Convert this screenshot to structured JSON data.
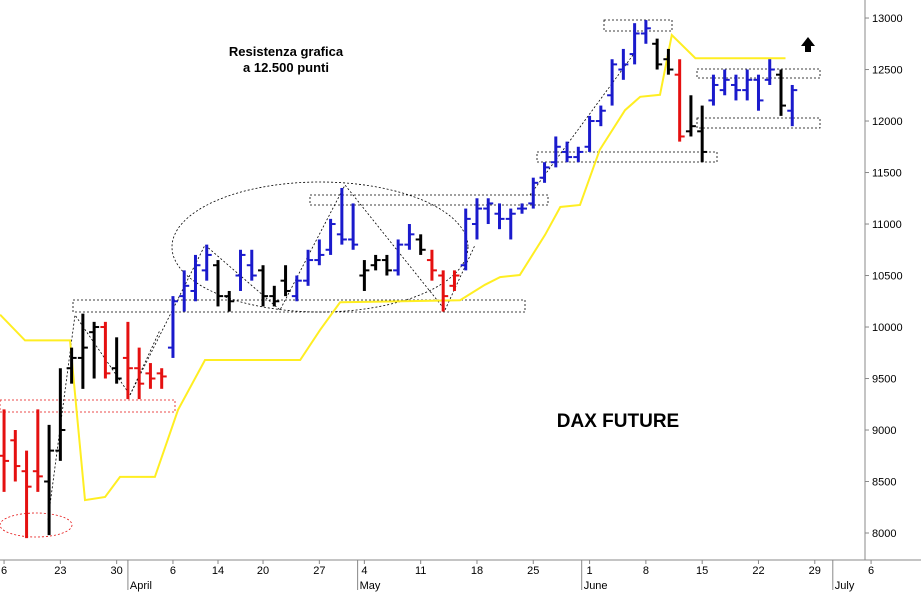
{
  "chart_data": {
    "type": "ohlc",
    "title": "DAX FUTURE",
    "annotation": [
      "Resistenza grafica",
      "a 12.500 punti"
    ],
    "xlim": [
      -0.36,
      76.46
    ],
    "ylim": [
      7738,
      13175
    ],
    "yticks": [
      8000,
      8500,
      9000,
      9500,
      10000,
      10500,
      11000,
      11500,
      12000,
      12500,
      13000
    ],
    "xticks": [
      {
        "value": 0,
        "label": "6"
      },
      {
        "value": 5,
        "label": "23"
      },
      {
        "value": 10,
        "label": "30"
      },
      {
        "value": 15,
        "label": "6"
      },
      {
        "value": 19,
        "label": "14"
      },
      {
        "value": 23,
        "label": "20"
      },
      {
        "value": 28,
        "label": "27"
      },
      {
        "value": 32,
        "label": "4"
      },
      {
        "value": 37,
        "label": "11"
      },
      {
        "value": 42,
        "label": "18"
      },
      {
        "value": 47,
        "label": "25"
      },
      {
        "value": 52,
        "label": "1"
      },
      {
        "value": 57,
        "label": "8"
      },
      {
        "value": 62,
        "label": "15"
      },
      {
        "value": 67,
        "label": "22"
      },
      {
        "value": 72,
        "label": "29"
      },
      {
        "value": 77,
        "label": "6"
      }
    ],
    "months": [
      {
        "value": 11,
        "label": "April"
      },
      {
        "value": 31.4,
        "label": "May"
      },
      {
        "value": 51.3,
        "label": "June"
      },
      {
        "value": 73.6,
        "label": "July"
      }
    ],
    "bars": [
      {
        "x": 0,
        "open": 8750,
        "high": 9200,
        "low": 8400,
        "close": 8700,
        "color": "#e51010"
      },
      {
        "x": 1,
        "open": 8900,
        "high": 9000,
        "low": 8500,
        "close": 8650,
        "color": "#e51010"
      },
      {
        "x": 2,
        "open": 8600,
        "high": 8800,
        "low": 7950,
        "close": 8450,
        "color": "#e51010"
      },
      {
        "x": 3,
        "open": 8600,
        "high": 9200,
        "low": 8400,
        "close": 8550,
        "color": "#e51010"
      },
      {
        "x": 4,
        "open": 8500,
        "high": 9050,
        "low": 7980,
        "close": 8800,
        "color": "#000000"
      },
      {
        "x": 5,
        "open": 8800,
        "high": 9600,
        "low": 8700,
        "close": 9000,
        "color": "#000000"
      },
      {
        "x": 6,
        "open": 9600,
        "high": 9800,
        "low": 9450,
        "close": 9700,
        "color": "#000000"
      },
      {
        "x": 7,
        "open": 9700,
        "high": 10130,
        "low": 9400,
        "close": 9800,
        "color": "#000000"
      },
      {
        "x": 8,
        "open": 9950,
        "high": 10050,
        "low": 9500,
        "close": 10000,
        "color": "#000000"
      },
      {
        "x": 9,
        "open": 10000,
        "high": 10050,
        "low": 9500,
        "close": 9550,
        "color": "#e51010"
      },
      {
        "x": 10,
        "open": 9600,
        "high": 9900,
        "low": 9450,
        "close": 9500,
        "color": "#000000"
      },
      {
        "x": 11,
        "open": 9700,
        "high": 10050,
        "low": 9300,
        "close": 9600,
        "color": "#e51010"
      },
      {
        "x": 12,
        "open": 9600,
        "high": 9800,
        "low": 9300,
        "close": 9450,
        "color": "#e51010"
      },
      {
        "x": 13,
        "open": 9550,
        "high": 9650,
        "low": 9400,
        "close": 9500,
        "color": "#e51010"
      },
      {
        "x": 14,
        "open": 9550,
        "high": 9600,
        "low": 9400,
        "close": 9520,
        "color": "#e51010"
      },
      {
        "x": 15,
        "open": 9800,
        "high": 10300,
        "low": 9700,
        "close": 10250,
        "color": "#1a1acc"
      },
      {
        "x": 16,
        "open": 10300,
        "high": 10550,
        "low": 10150,
        "close": 10400,
        "color": "#1a1acc"
      },
      {
        "x": 17,
        "open": 10350,
        "high": 10700,
        "low": 10250,
        "close": 10600,
        "color": "#1a1acc"
      },
      {
        "x": 18,
        "open": 10550,
        "high": 10800,
        "low": 10450,
        "close": 10700,
        "color": "#1a1acc"
      },
      {
        "x": 19,
        "open": 10600,
        "high": 10650,
        "low": 10200,
        "close": 10300,
        "color": "#000000"
      },
      {
        "x": 20,
        "open": 10300,
        "high": 10350,
        "low": 10150,
        "close": 10250,
        "color": "#000000"
      },
      {
        "x": 21,
        "open": 10500,
        "high": 10750,
        "low": 10350,
        "close": 10700,
        "color": "#1a1acc"
      },
      {
        "x": 22,
        "open": 10600,
        "high": 10750,
        "low": 10450,
        "close": 10500,
        "color": "#1a1acc"
      },
      {
        "x": 23,
        "open": 10550,
        "high": 10600,
        "low": 10200,
        "close": 10300,
        "color": "#000000"
      },
      {
        "x": 24,
        "open": 10300,
        "high": 10400,
        "low": 10200,
        "close": 10250,
        "color": "#000000"
      },
      {
        "x": 25,
        "open": 10450,
        "high": 10600,
        "low": 10300,
        "close": 10350,
        "color": "#000000"
      },
      {
        "x": 26,
        "open": 10300,
        "high": 10500,
        "low": 10250,
        "close": 10450,
        "color": "#1a1acc"
      },
      {
        "x": 27,
        "open": 10450,
        "high": 10750,
        "low": 10400,
        "close": 10650,
        "color": "#1a1acc"
      },
      {
        "x": 28,
        "open": 10650,
        "high": 10850,
        "low": 10600,
        "close": 10700,
        "color": "#1a1acc"
      },
      {
        "x": 29,
        "open": 10750,
        "high": 11050,
        "low": 10700,
        "close": 11000,
        "color": "#1a1acc"
      },
      {
        "x": 30,
        "open": 10900,
        "high": 11350,
        "low": 10800,
        "close": 10850,
        "color": "#1a1acc"
      },
      {
        "x": 31,
        "open": 10850,
        "high": 11200,
        "low": 10750,
        "close": 10800,
        "color": "#1a1acc"
      },
      {
        "x": 32,
        "open": 10500,
        "high": 10650,
        "low": 10350,
        "close": 10550,
        "color": "#000000"
      },
      {
        "x": 33,
        "open": 10600,
        "high": 10700,
        "low": 10550,
        "close": 10650,
        "color": "#000000"
      },
      {
        "x": 34,
        "open": 10650,
        "high": 10700,
        "low": 10500,
        "close": 10550,
        "color": "#000000"
      },
      {
        "x": 35,
        "open": 10550,
        "high": 10850,
        "low": 10500,
        "close": 10800,
        "color": "#1a1acc"
      },
      {
        "x": 36,
        "open": 10800,
        "high": 11000,
        "low": 10750,
        "close": 10900,
        "color": "#1a1acc"
      },
      {
        "x": 37,
        "open": 10850,
        "high": 10900,
        "low": 10700,
        "close": 10750,
        "color": "#000000"
      },
      {
        "x": 38,
        "open": 10650,
        "high": 10750,
        "low": 10450,
        "close": 10550,
        "color": "#e51010"
      },
      {
        "x": 39,
        "open": 10500,
        "high": 10550,
        "low": 10150,
        "close": 10300,
        "color": "#e51010"
      },
      {
        "x": 40,
        "open": 10400,
        "high": 10550,
        "low": 10350,
        "close": 10500,
        "color": "#e51010"
      },
      {
        "x": 41,
        "open": 10600,
        "high": 11150,
        "low": 10550,
        "close": 11050,
        "color": "#1a1acc"
      },
      {
        "x": 42,
        "open": 11000,
        "high": 11250,
        "low": 10850,
        "close": 11150,
        "color": "#1a1acc"
      },
      {
        "x": 43,
        "open": 11150,
        "high": 11250,
        "low": 11000,
        "close": 11200,
        "color": "#1a1acc"
      },
      {
        "x": 44,
        "open": 11100,
        "high": 11200,
        "low": 10950,
        "close": 11050,
        "color": "#1a1acc"
      },
      {
        "x": 45,
        "open": 11050,
        "high": 11150,
        "low": 10850,
        "close": 11100,
        "color": "#1a1acc"
      },
      {
        "x": 46,
        "open": 11150,
        "high": 11200,
        "low": 11100,
        "close": 11150,
        "color": "#1a1acc"
      },
      {
        "x": 47,
        "open": 11200,
        "high": 11450,
        "low": 11150,
        "close": 11400,
        "color": "#1a1acc"
      },
      {
        "x": 48,
        "open": 11450,
        "high": 11600,
        "low": 11400,
        "close": 11550,
        "color": "#1a1acc"
      },
      {
        "x": 49,
        "open": 11600,
        "high": 11850,
        "low": 11550,
        "close": 11750,
        "color": "#1a1acc"
      },
      {
        "x": 50,
        "open": 11700,
        "high": 11800,
        "low": 11600,
        "close": 11650,
        "color": "#1a1acc"
      },
      {
        "x": 51,
        "open": 11650,
        "high": 11750,
        "low": 11600,
        "close": 11700,
        "color": "#1a1acc"
      },
      {
        "x": 52,
        "open": 11750,
        "high": 12050,
        "low": 11700,
        "close": 12000,
        "color": "#1a1acc"
      },
      {
        "x": 53,
        "open": 12000,
        "high": 12150,
        "low": 11950,
        "close": 12100,
        "color": "#1a1acc"
      },
      {
        "x": 54,
        "open": 12250,
        "high": 12600,
        "low": 12150,
        "close": 12550,
        "color": "#1a1acc"
      },
      {
        "x": 55,
        "open": 12500,
        "high": 12700,
        "low": 12400,
        "close": 12550,
        "color": "#1a1acc"
      },
      {
        "x": 56,
        "open": 12650,
        "high": 12950,
        "low": 12550,
        "close": 12850,
        "color": "#1a1acc"
      },
      {
        "x": 57,
        "open": 12850,
        "high": 12980,
        "low": 12750,
        "close": 12900,
        "color": "#1a1acc"
      },
      {
        "x": 58,
        "open": 12750,
        "high": 12800,
        "low": 12500,
        "close": 12550,
        "color": "#000000"
      },
      {
        "x": 59,
        "open": 12600,
        "high": 12700,
        "low": 12450,
        "close": 12500,
        "color": "#000000"
      },
      {
        "x": 60,
        "open": 12450,
        "high": 12600,
        "low": 11800,
        "close": 11850,
        "color": "#e51010"
      },
      {
        "x": 61,
        "open": 11900,
        "high": 12250,
        "low": 11850,
        "close": 11950,
        "color": "#000000"
      },
      {
        "x": 62,
        "open": 11900,
        "high": 12150,
        "low": 11600,
        "close": 11700,
        "color": "#000000"
      },
      {
        "x": 63,
        "open": 12200,
        "high": 12450,
        "low": 12150,
        "close": 12350,
        "color": "#1a1acc"
      },
      {
        "x": 64,
        "open": 12300,
        "high": 12500,
        "low": 12250,
        "close": 12400,
        "color": "#1a1acc"
      },
      {
        "x": 65,
        "open": 12350,
        "high": 12450,
        "low": 12200,
        "close": 12300,
        "color": "#1a1acc"
      },
      {
        "x": 66,
        "open": 12300,
        "high": 12500,
        "low": 12200,
        "close": 12400,
        "color": "#1a1acc"
      },
      {
        "x": 67,
        "open": 12400,
        "high": 12450,
        "low": 12100,
        "close": 12200,
        "color": "#1a1acc"
      },
      {
        "x": 68,
        "open": 12400,
        "high": 12600,
        "low": 12350,
        "close": 12500,
        "color": "#1a1acc"
      },
      {
        "x": 69,
        "open": 12450,
        "high": 12500,
        "low": 12050,
        "close": 12150,
        "color": "#000000"
      },
      {
        "x": 70,
        "open": 12100,
        "high": 12350,
        "low": 11950,
        "close": 12300,
        "color": "#1a1acc"
      }
    ],
    "overlay": {
      "color": "#ffee22",
      "x": [
        -0.35,
        1.86,
        5.86,
        7.19,
        8.97,
        10.3,
        13.4,
        15.45,
        17.85,
        26.3,
        28.06,
        29.84,
        40.5,
        42.7,
        44.05,
        45.8,
        48.05,
        49.4,
        51.15,
        52.9,
        55.15,
        56.5,
        58.25,
        59.3,
        61.4,
        69.4
      ],
      "values": [
        10120,
        9870,
        9870,
        8320,
        8350,
        8545,
        8545,
        9195,
        9680,
        9680,
        9970,
        10240,
        10260,
        10410,
        10485,
        10505,
        10895,
        11165,
        11185,
        11720,
        12105,
        12235,
        12255,
        12835,
        12610,
        12610
      ]
    }
  }
}
